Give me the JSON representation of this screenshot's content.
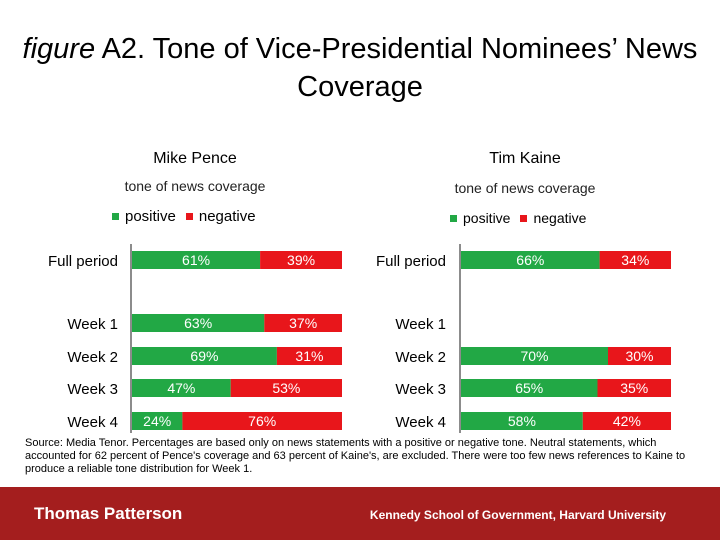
{
  "title": {
    "prefix": "figure",
    "main": "A2. Tone of Vice-Presidential Nominees’ News Coverage"
  },
  "colors": {
    "positive": "#22a845",
    "negative": "#e8161b",
    "footer": "#a41e1e"
  },
  "chart_data": [
    {
      "type": "bar",
      "stacked": true,
      "orientation": "horizontal",
      "title": "Mike Pence",
      "subtitle": "tone of news coverage",
      "legend": [
        "positive",
        "negative"
      ],
      "categories": [
        "Full period",
        "Week 1",
        "Week 2",
        "Week 3",
        "Week 4"
      ],
      "series": [
        {
          "name": "positive",
          "values": [
            61,
            63,
            69,
            47,
            24
          ],
          "labels": [
            "61%",
            "63%",
            "69%",
            "47%",
            "24%"
          ]
        },
        {
          "name": "negative",
          "values": [
            39,
            37,
            31,
            53,
            76
          ],
          "labels": [
            "39%",
            "37%",
            "31%",
            "53%",
            "76%"
          ]
        }
      ],
      "xlim": [
        0,
        100
      ]
    },
    {
      "type": "bar",
      "stacked": true,
      "orientation": "horizontal",
      "title": "Tim Kaine",
      "subtitle": "tone of news coverage",
      "legend": [
        "positive",
        "negative"
      ],
      "categories": [
        "Full period",
        "Week 1",
        "Week 2",
        "Week 3",
        "Week 4"
      ],
      "series": [
        {
          "name": "positive",
          "values": [
            66,
            null,
            70,
            65,
            58
          ],
          "labels": [
            "66%",
            "",
            "70%",
            "65%",
            "58%"
          ]
        },
        {
          "name": "negative",
          "values": [
            34,
            null,
            30,
            35,
            42
          ],
          "labels": [
            "34%",
            "",
            "30%",
            "35%",
            "42%"
          ]
        }
      ],
      "xlim": [
        0,
        100
      ]
    }
  ],
  "source_note": "Source: Media Tenor. Percentages are based only on news statements with a positive or negative tone. Neutral statements, which accounted for 62 percent of Pence's coverage and 63 percent of Kaine's, are excluded. There were too few news references to Kaine to produce a reliable tone distribution for Week 1.",
  "footer": {
    "author": "Thomas Patterson",
    "institution": "Kennedy School of Government, Harvard University"
  }
}
